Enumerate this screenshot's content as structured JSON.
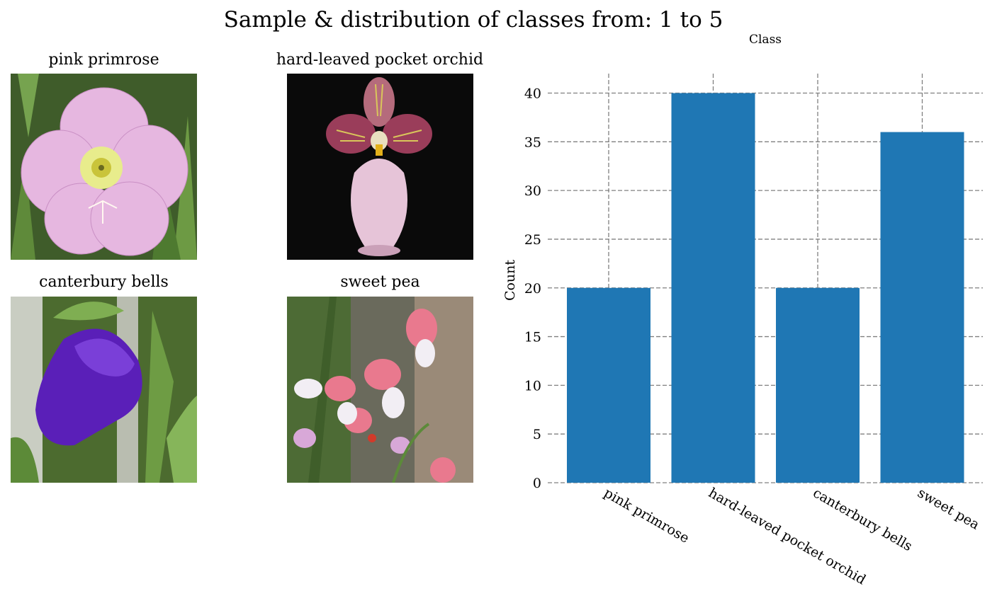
{
  "figure": {
    "title": "Sample & distribution of classes from: 1 to 5"
  },
  "samples": [
    {
      "label": "pink primrose",
      "icon": "pink-primrose-photo"
    },
    {
      "label": "hard-leaved pocket orchid",
      "icon": "pocket-orchid-photo"
    },
    {
      "label": "canterbury bells",
      "icon": "canterbury-bells-photo"
    },
    {
      "label": "sweet pea",
      "icon": "sweet-pea-photo"
    }
  ],
  "chart_data": {
    "type": "bar",
    "title": "Class",
    "xlabel": "",
    "ylabel": "Count",
    "categories": [
      "pink primrose",
      "hard-leaved pocket orchid",
      "canterbury bells",
      "sweet pea"
    ],
    "values": [
      20,
      40,
      20,
      36
    ],
    "ylim": [
      0,
      42
    ],
    "yticks": [
      0,
      5,
      10,
      15,
      20,
      25,
      30,
      35,
      40
    ],
    "grid": true,
    "grid_style": "dashed",
    "bar_color": "#1f77b4",
    "grid_color": "#808080"
  }
}
